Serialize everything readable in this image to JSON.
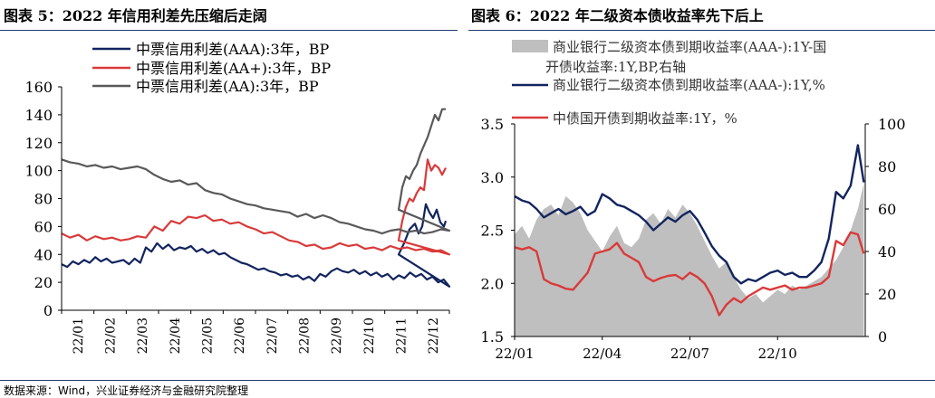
{
  "titles": {
    "left": "图表 5：2022 年信用利差先压缩后走阔",
    "right": "图表 6：2022 年二级资本债收益率先下后上"
  },
  "source": "数据来源：Wind，兴业证券经济与金融研究院整理",
  "colors": {
    "navy": "#12245f",
    "red": "#d93a3a",
    "gray": "#595959",
    "lightgray": "#bfbfbf",
    "rule": "#1f3a6e"
  },
  "chart_data": [
    {
      "type": "line",
      "title": "2022 年信用利差先压缩后走阔",
      "xlabel": "",
      "ylabel": "",
      "ylim": [
        0,
        160
      ],
      "yticks": [
        0,
        20,
        40,
        60,
        80,
        100,
        120,
        140,
        160
      ],
      "grid": false,
      "legend": "top-left",
      "x": [
        "22/01",
        "22/02",
        "22/03",
        "22/04",
        "22/05",
        "22/06",
        "22/07",
        "22/08",
        "22/09",
        "22/10",
        "22/11",
        "22/12"
      ],
      "series": [
        {
          "name": "中票信用利差(AAA):3年，BP",
          "color": "#12245f",
          "x": [
            0,
            0.2,
            0.4,
            0.6,
            0.8,
            1.0,
            1.2,
            1.4,
            1.6,
            1.8,
            2.0,
            2.2,
            2.4,
            2.6,
            2.8,
            3.0,
            3.2,
            3.4,
            3.6,
            3.8,
            4.0,
            4.2,
            4.4,
            4.6,
            4.8,
            5.0,
            5.2,
            5.4,
            5.6,
            5.8,
            6.0,
            6.2,
            6.4,
            6.6,
            6.8,
            7.0,
            7.2,
            7.4,
            7.6,
            7.8,
            8.0,
            8.2,
            8.4,
            8.6,
            8.8,
            9.0,
            9.2,
            9.4,
            9.6,
            9.8,
            10.0,
            10.2,
            10.4,
            10.6,
            10.8,
            11.0,
            11.2,
            11.4,
            11.6,
            11.8,
            12.0,
            12.2,
            12.4,
            12.6,
            12.8,
            13.0,
            13.2,
            13.4,
            13.6,
            13.8
          ],
          "values": [
            33,
            31,
            35,
            33,
            36,
            34,
            38,
            35,
            37,
            34,
            35,
            36,
            33,
            37,
            34,
            45,
            42,
            48,
            44,
            47,
            43,
            45,
            44,
            46,
            42,
            44,
            41,
            43,
            40,
            41,
            38,
            36,
            34,
            33,
            31,
            29,
            30,
            28,
            27,
            25,
            26,
            24,
            25,
            22,
            24,
            21,
            26,
            24,
            28,
            30,
            28,
            27,
            29,
            26,
            28,
            25,
            27,
            24,
            26,
            22,
            25,
            23,
            27,
            24,
            26,
            22,
            24,
            20,
            22,
            17
          ]
        },
        {
          "name": "中票信用利差(AA+):3年，BP",
          "color": "#d93a3a",
          "x": [
            0,
            0.3,
            0.6,
            0.9,
            1.2,
            1.5,
            1.8,
            2.1,
            2.4,
            2.7,
            3.0,
            3.3,
            3.6,
            3.9,
            4.2,
            4.5,
            4.8,
            5.1,
            5.4,
            5.7,
            6.0,
            6.3,
            6.6,
            6.9,
            7.2,
            7.5,
            7.8,
            8.1,
            8.4,
            8.7,
            9.0,
            9.3,
            9.6,
            9.9,
            10.2,
            10.5,
            10.8,
            11.1,
            11.4,
            11.7,
            12.0,
            12.3,
            12.6,
            12.9,
            13.2,
            13.5,
            13.8
          ],
          "values": [
            55,
            52,
            54,
            50,
            53,
            51,
            52,
            50,
            51,
            53,
            52,
            60,
            57,
            64,
            62,
            67,
            66,
            68,
            64,
            65,
            62,
            63,
            60,
            58,
            55,
            56,
            53,
            50,
            49,
            46,
            47,
            44,
            45,
            48,
            46,
            47,
            44,
            45,
            43,
            46,
            44,
            45,
            43,
            44,
            42,
            43,
            40
          ]
        },
        {
          "name": "中票信用利差(AA):3年，BP",
          "color": "#595959",
          "x": [
            0,
            0.3,
            0.6,
            0.9,
            1.2,
            1.5,
            1.8,
            2.1,
            2.4,
            2.7,
            3.0,
            3.3,
            3.6,
            3.9,
            4.2,
            4.5,
            4.8,
            5.1,
            5.4,
            5.7,
            6.0,
            6.3,
            6.6,
            6.9,
            7.2,
            7.5,
            7.8,
            8.1,
            8.4,
            8.7,
            9.0,
            9.3,
            9.6,
            9.9,
            10.2,
            10.5,
            10.8,
            11.1,
            11.4,
            11.7,
            12.0,
            12.3,
            12.6,
            12.9,
            13.2,
            13.5,
            13.8
          ],
          "values": [
            108,
            106,
            105,
            103,
            104,
            102,
            103,
            101,
            102,
            103,
            101,
            97,
            94,
            92,
            93,
            90,
            91,
            86,
            84,
            83,
            80,
            78,
            76,
            75,
            73,
            72,
            71,
            70,
            67,
            69,
            66,
            68,
            66,
            63,
            62,
            60,
            58,
            57,
            55,
            57,
            58,
            56,
            57,
            55,
            56,
            58,
            57
          ]
        }
      ],
      "annotations_note": "series rise sharply after 22/11"
    },
    {
      "type": "line",
      "title": "2022 年二级资本债收益率先下后上",
      "xlabel": "",
      "ylabel": "",
      "ylim": [
        1.5,
        3.5
      ],
      "yticks": [
        1.5,
        2.0,
        2.5,
        3.0,
        3.5
      ],
      "y2lim": [
        0,
        100
      ],
      "y2ticks": [
        0,
        20,
        40,
        60,
        80,
        100
      ],
      "grid": false,
      "legend": "top",
      "x": [
        "22/01",
        "22/04",
        "22/07",
        "22/10"
      ],
      "series": [
        {
          "name": "商业银行二级资本债到期收益率(AAA-):1Y-国开债收益率:1Y,BP,右轴",
          "type": "area",
          "axis": "right",
          "color": "#bfbfbf",
          "x": [
            0,
            0.25,
            0.5,
            0.75,
            1.0,
            1.25,
            1.5,
            1.75,
            2.0,
            2.25,
            2.5,
            2.75,
            3.0,
            3.25,
            3.5,
            3.75,
            4.0,
            4.25,
            4.5,
            4.75,
            5.0,
            5.25,
            5.5,
            5.75,
            6.0,
            6.25,
            6.5,
            6.75,
            7.0,
            7.25,
            7.5,
            7.75,
            8.0,
            8.25,
            8.5,
            8.75,
            9.0,
            9.25,
            9.5,
            9.75,
            10.0,
            10.25,
            10.5,
            10.75,
            11.0,
            11.25,
            11.5,
            11.75,
            11.95
          ],
          "values": [
            48,
            52,
            46,
            55,
            60,
            62,
            57,
            66,
            63,
            58,
            50,
            45,
            40,
            47,
            52,
            44,
            42,
            46,
            55,
            58,
            53,
            60,
            56,
            62,
            58,
            52,
            45,
            38,
            32,
            35,
            28,
            22,
            18,
            20,
            16,
            19,
            22,
            20,
            24,
            22,
            24,
            26,
            28,
            32,
            36,
            42,
            50,
            60,
            72
          ]
        },
        {
          "name": "商业银行二级资本债到期收益率(AAA-):1Y,%",
          "axis": "left",
          "color": "#12245f",
          "x": [
            0,
            0.25,
            0.5,
            0.75,
            1.0,
            1.25,
            1.5,
            1.75,
            2.0,
            2.25,
            2.5,
            2.75,
            3.0,
            3.25,
            3.5,
            3.75,
            4.0,
            4.25,
            4.5,
            4.75,
            5.0,
            5.25,
            5.5,
            5.75,
            6.0,
            6.25,
            6.5,
            6.75,
            7.0,
            7.25,
            7.5,
            7.75,
            8.0,
            8.25,
            8.5,
            8.75,
            9.0,
            9.25,
            9.5,
            9.75,
            10.0,
            10.25,
            10.5,
            10.75,
            11.0,
            11.25,
            11.5,
            11.75,
            11.95
          ],
          "values": [
            2.82,
            2.78,
            2.76,
            2.7,
            2.62,
            2.66,
            2.7,
            2.65,
            2.68,
            2.72,
            2.64,
            2.68,
            2.84,
            2.8,
            2.74,
            2.72,
            2.68,
            2.64,
            2.58,
            2.5,
            2.56,
            2.62,
            2.58,
            2.64,
            2.68,
            2.6,
            2.48,
            2.35,
            2.26,
            2.2,
            2.06,
            2.0,
            2.04,
            2.02,
            2.06,
            2.1,
            2.12,
            2.08,
            2.1,
            2.06,
            2.06,
            2.12,
            2.2,
            2.42,
            2.86,
            2.8,
            2.92,
            3.3,
            2.95
          ]
        },
        {
          "name": "中债国开债到期收益率:1Y，%",
          "axis": "left",
          "color": "#d93a3a",
          "x": [
            0,
            0.25,
            0.5,
            0.75,
            1.0,
            1.25,
            1.5,
            1.75,
            2.0,
            2.25,
            2.5,
            2.75,
            3.0,
            3.25,
            3.5,
            3.75,
            4.0,
            4.25,
            4.5,
            4.75,
            5.0,
            5.25,
            5.5,
            5.75,
            6.0,
            6.25,
            6.5,
            6.75,
            7.0,
            7.25,
            7.5,
            7.75,
            8.0,
            8.25,
            8.5,
            8.75,
            9.0,
            9.25,
            9.5,
            9.75,
            10.0,
            10.25,
            10.5,
            10.75,
            11.0,
            11.25,
            11.5,
            11.75,
            11.95
          ],
          "values": [
            2.34,
            2.32,
            2.34,
            2.3,
            2.04,
            2.0,
            1.98,
            1.95,
            1.94,
            2.02,
            2.1,
            2.28,
            2.3,
            2.32,
            2.38,
            2.28,
            2.24,
            2.2,
            2.06,
            2.02,
            2.05,
            2.07,
            2.08,
            2.04,
            2.1,
            2.06,
            2.0,
            1.88,
            1.7,
            1.8,
            1.86,
            1.82,
            1.88,
            1.92,
            1.96,
            1.94,
            1.96,
            1.98,
            1.94,
            1.96,
            1.96,
            1.98,
            2.0,
            2.06,
            2.4,
            2.36,
            2.48,
            2.46,
            2.28
          ]
        }
      ]
    }
  ]
}
